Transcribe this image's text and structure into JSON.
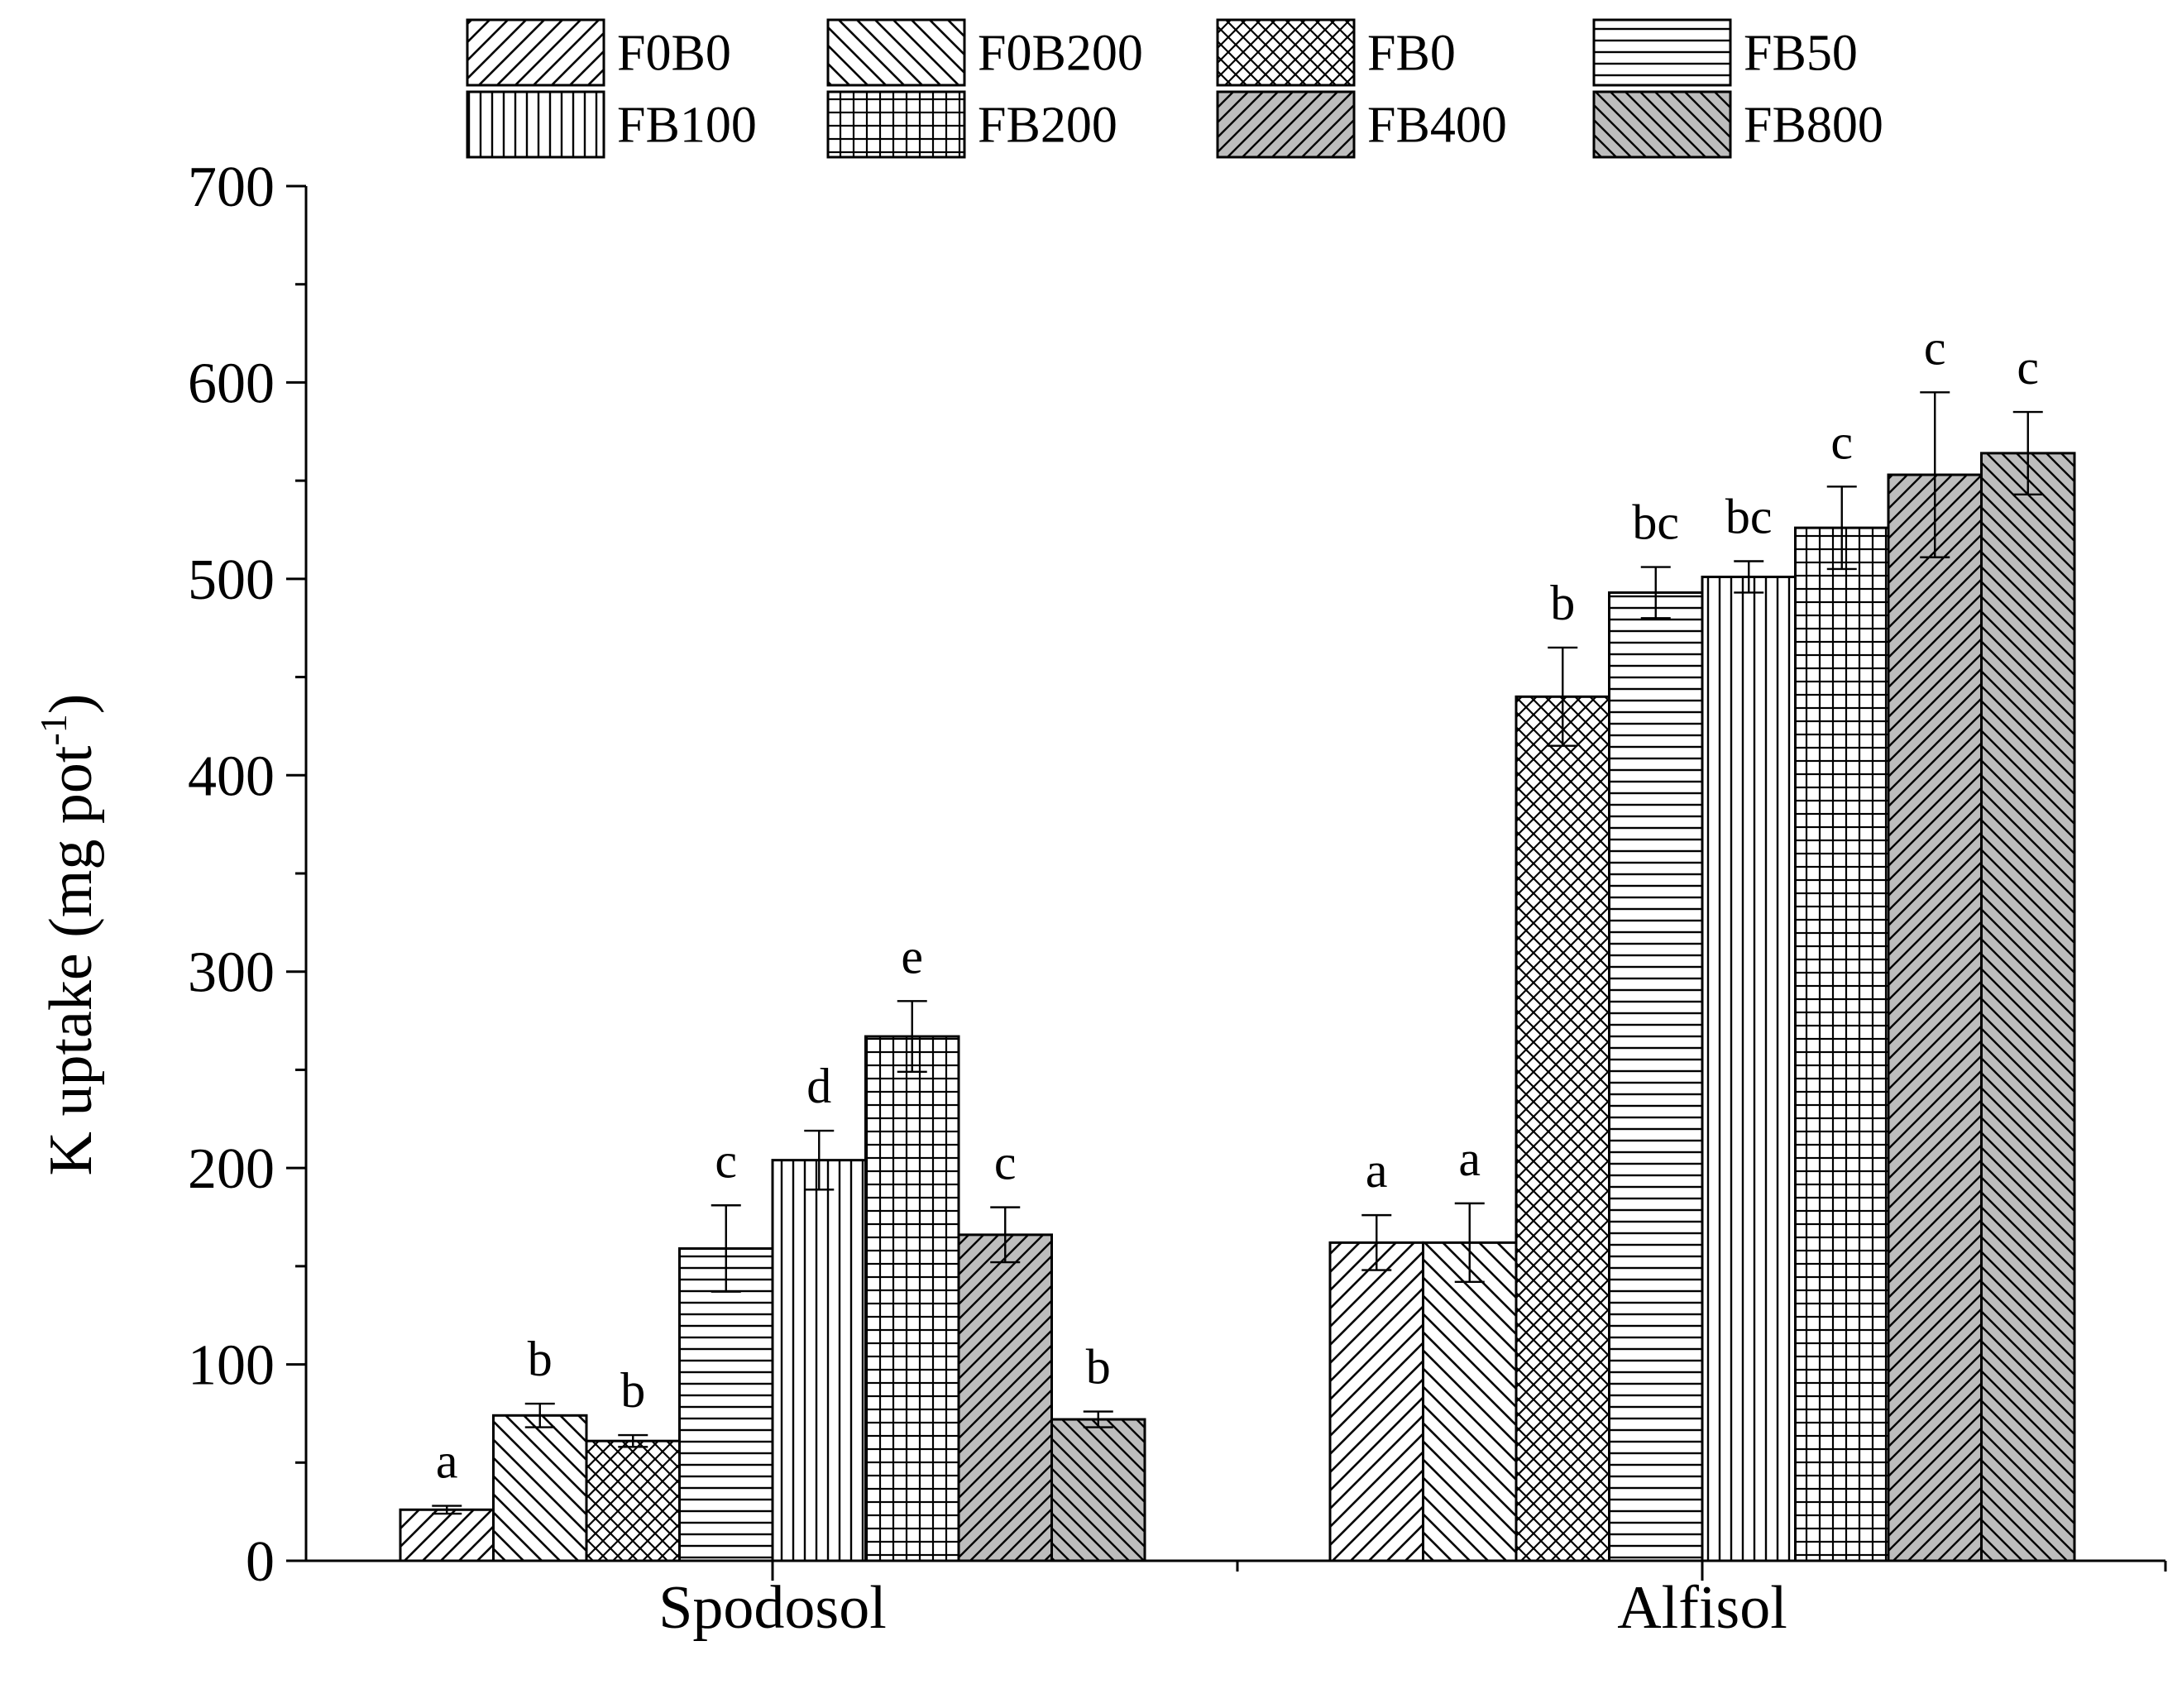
{
  "chart_data": {
    "type": "bar",
    "title": "",
    "xlabel": "",
    "ylabel": "K uptake (mg pot",
    "ylabel_superscript": "-1",
    "ylabel_close": ")",
    "ylim": [
      0,
      700
    ],
    "yticks": [
      0,
      100,
      200,
      300,
      400,
      500,
      600,
      700
    ],
    "y_minor_step": 50,
    "grid": false,
    "legend_position": "top",
    "categories": [
      "Spodosol",
      "Alfisol"
    ],
    "series": [
      {
        "name": "F0B0",
        "pattern": "diag-fwd",
        "values": [
          26,
          162
        ],
        "errors": [
          2,
          14
        ],
        "labels": [
          "a",
          "a"
        ]
      },
      {
        "name": "F0B200",
        "pattern": "diag-back",
        "values": [
          74,
          162
        ],
        "errors": [
          6,
          20
        ],
        "labels": [
          "b",
          "a"
        ]
      },
      {
        "name": "FB0",
        "pattern": "crosshatch",
        "values": [
          61,
          440
        ],
        "errors": [
          3,
          25
        ],
        "labels": [
          "b",
          "b"
        ]
      },
      {
        "name": "FB50",
        "pattern": "horizontal",
        "values": [
          159,
          493
        ],
        "errors": [
          22,
          13
        ],
        "labels": [
          "c",
          "bc"
        ]
      },
      {
        "name": "FB100",
        "pattern": "vertical",
        "values": [
          204,
          501
        ],
        "errors": [
          15,
          8
        ],
        "labels": [
          "d",
          "bc"
        ]
      },
      {
        "name": "FB200",
        "pattern": "grid",
        "values": [
          267,
          526
        ],
        "errors": [
          18,
          21
        ],
        "labels": [
          "e",
          "c"
        ]
      },
      {
        "name": "FB400",
        "pattern": "gray-diag-fwd",
        "values": [
          166,
          553
        ],
        "errors": [
          14,
          42
        ],
        "labels": [
          "c",
          "c"
        ]
      },
      {
        "name": "FB800",
        "pattern": "gray-diag-back",
        "values": [
          72,
          564
        ],
        "errors": [
          4,
          21
        ],
        "labels": [
          "b",
          "c"
        ]
      }
    ],
    "colors": {
      "bar_fill": "#ffffff",
      "bar_fill_gray": "#bdbdbd",
      "stroke": "#000000"
    }
  }
}
